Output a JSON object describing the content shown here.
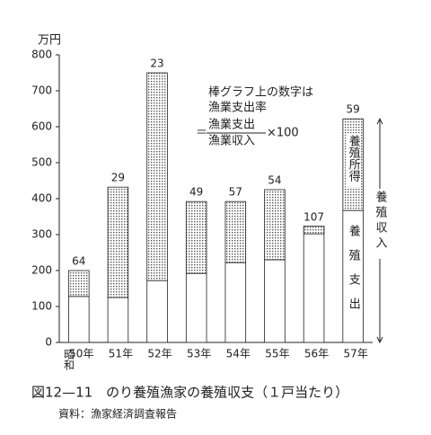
{
  "chart_data": {
    "type": "stacked_bar",
    "y_unit": "万円",
    "x_prefix": "昭和",
    "categories": [
      "50年",
      "51年",
      "52年",
      "53年",
      "54年",
      "55年",
      "56年",
      "57年"
    ],
    "series": [
      {
        "name": "養殖支出",
        "color": "#ffffff",
        "values": [
          128,
          125,
          172,
          192,
          222,
          230,
          323,
          367
        ]
      },
      {
        "name": "養殖所得",
        "color": "#555555",
        "values": [
          72,
          307,
          578,
          200,
          170,
          195,
          -21,
          255
        ]
      }
    ],
    "rate_labels": [
      64,
      29,
      23,
      49,
      57,
      54,
      107,
      59
    ],
    "total_label": "養殖収入",
    "annotation": {
      "line1": "棒グラフ上の数字は",
      "line2": "漁業支出率",
      "eq": "＝",
      "numerator": "漁業支出",
      "denominator": "漁業収入",
      "factor": "×100"
    },
    "ylim": [
      0,
      800
    ],
    "yticks": [
      0,
      100,
      200,
      300,
      400,
      500,
      600,
      700,
      800
    ],
    "caption": "図12—11　のり養殖漁家の養殖収支（１戸当たり）",
    "source": "資料：漁家経済調査報告"
  }
}
